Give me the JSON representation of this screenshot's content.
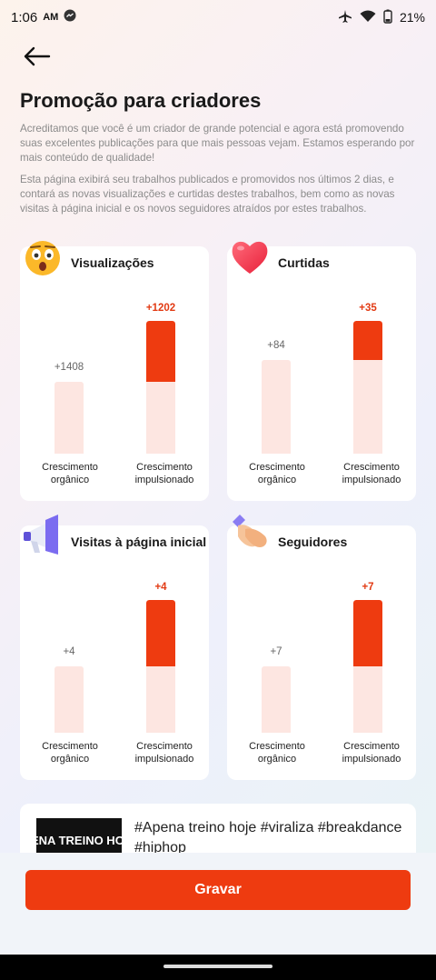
{
  "status_bar": {
    "time": "1:06",
    "ampm": "AM",
    "battery": "21%"
  },
  "page": {
    "title": "Promoção para criadores",
    "description_1": "Acreditamos que você é um criador de grande potencial e agora está promovendo suas excelentes publicações para que mais pessoas vejam. Estamos esperando por mais conteúdo de qualidade!",
    "description_2": "Esta página exibirá seu trabalhos publicados e promovidos nos últimos 2 dias, e contará as novas visualizações e curtidas destes trabalhos, bem como as novas visitas à página inicial e os novos seguidores atraídos por estes trabalhos."
  },
  "colors": {
    "accent": "#ee3b10",
    "bar_base": "#fde6e1"
  },
  "axis": {
    "organic_label": "Crescimento orgânico",
    "boosted_label": "Crescimento impulsionado"
  },
  "cards": [
    {
      "title": "Visualizações",
      "icon": "surprised-face-icon",
      "organic": "+1408",
      "boosted": "+1202"
    },
    {
      "title": "Curtidas",
      "icon": "heart-icon",
      "organic": "+84",
      "boosted": "+35"
    },
    {
      "title": "Visitas à página inicial",
      "icon": "megaphone-icon",
      "organic": "+4",
      "boosted": "+4"
    },
    {
      "title": "Seguidores",
      "icon": "handshake-icon",
      "organic": "+7",
      "boosted": "+7"
    }
  ],
  "chart_data": [
    {
      "type": "bar",
      "title": "Visualizações",
      "categories": [
        "Crescimento orgânico",
        "Crescimento impulsionado"
      ],
      "values": [
        1408,
        2610
      ],
      "series": [
        {
          "values": [
            1408,
            1408
          ]
        },
        {
          "values": [
            0,
            1202
          ]
        }
      ]
    },
    {
      "type": "bar",
      "title": "Curtidas",
      "categories": [
        "Crescimento orgânico",
        "Crescimento impulsionado"
      ],
      "values": [
        84,
        119
      ],
      "series": [
        {
          "values": [
            84,
            84
          ]
        },
        {
          "values": [
            0,
            35
          ]
        }
      ]
    },
    {
      "type": "bar",
      "title": "Visitas à página inicial",
      "categories": [
        "Crescimento orgânico",
        "Crescimento impulsionado"
      ],
      "values": [
        4,
        8
      ],
      "series": [
        {
          "values": [
            4,
            4
          ]
        },
        {
          "values": [
            0,
            4
          ]
        }
      ]
    },
    {
      "type": "bar",
      "title": "Seguidores",
      "categories": [
        "Crescimento orgânico",
        "Crescimento impulsionado"
      ],
      "values": [
        7,
        14
      ],
      "series": [
        {
          "values": [
            7,
            7
          ]
        },
        {
          "values": [
            0,
            7
          ]
        }
      ]
    }
  ],
  "video": {
    "thumbnail_text": "ENA TREINO HOJ",
    "hashtags": "#Apena treino hoje #viraliza #breakdance #hiphop"
  },
  "record_button": "Gravar"
}
